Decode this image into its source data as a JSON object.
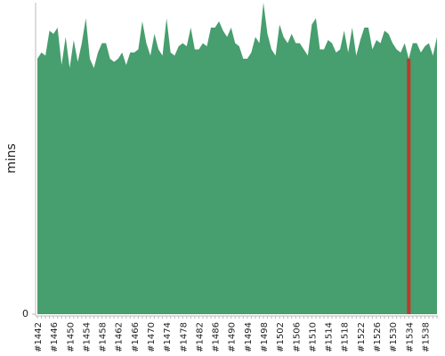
{
  "chart_data": {
    "type": "area",
    "y_label": "mins",
    "color": "#479e6e",
    "highlight": {
      "index": 92,
      "color": "#c0392b"
    },
    "categories": [
      "#1442",
      null,
      null,
      null,
      "#1446",
      null,
      null,
      null,
      "#1450",
      null,
      null,
      null,
      "#1454",
      null,
      null,
      null,
      "#1458",
      null,
      null,
      null,
      "#1462",
      null,
      null,
      null,
      "#1466",
      null,
      null,
      null,
      "#1470",
      null,
      null,
      null,
      "#1474",
      null,
      null,
      null,
      "#1478",
      null,
      null,
      null,
      "#1482",
      null,
      null,
      null,
      "#1486",
      null,
      null,
      null,
      "#1490",
      null,
      null,
      null,
      "#1494",
      null,
      null,
      null,
      "#1498",
      null,
      null,
      null,
      "#1502",
      null,
      null,
      null,
      "#1506",
      null,
      null,
      null,
      "#1510",
      null,
      null,
      null,
      "#1514",
      null,
      null,
      null,
      "#1518",
      null,
      null,
      null,
      "#1522",
      null,
      null,
      null,
      "#1526",
      null,
      null,
      null,
      "#1530",
      null,
      null,
      null,
      "#1534",
      null,
      null,
      null,
      "#1538",
      null,
      null,
      null
    ],
    "values": [
      82,
      84,
      83,
      91,
      90,
      92,
      80,
      89,
      79,
      88,
      81,
      87,
      95,
      82,
      79,
      84,
      87,
      87,
      82,
      81,
      82,
      84,
      80,
      84,
      84,
      85,
      94,
      87,
      83,
      90,
      85,
      83,
      95,
      84,
      83,
      86,
      87,
      86,
      92,
      85,
      85,
      87,
      86,
      92,
      92,
      94,
      91,
      89,
      92,
      87,
      86,
      82,
      82,
      84,
      89,
      87,
      100,
      90,
      85,
      83,
      93,
      89,
      87,
      90,
      87,
      87,
      85,
      83,
      93,
      95,
      85,
      85,
      88,
      87,
      84,
      85,
      91,
      84,
      92,
      83,
      88,
      92,
      92,
      85,
      88,
      87,
      91,
      90,
      87,
      85,
      84,
      87,
      82,
      87,
      87,
      84,
      86,
      87,
      83,
      89
    ],
    "ylim": [
      0,
      100
    ],
    "yticks": [
      0
    ]
  }
}
